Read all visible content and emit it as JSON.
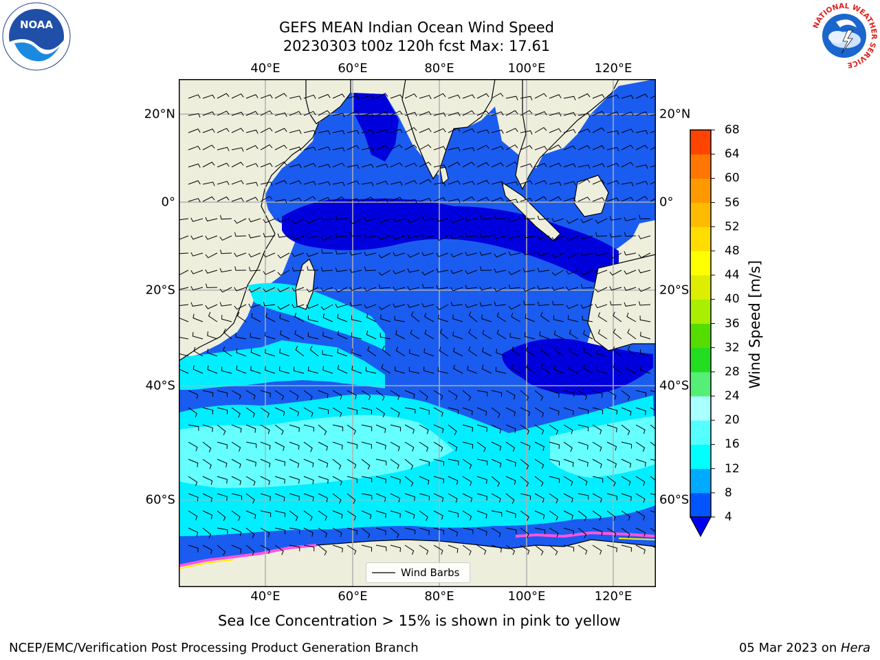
{
  "title": {
    "line1": "GEFS MEAN Indian Ocean Wind Speed",
    "line2": "20230303 t00z 120h fcst   Max: 17.61"
  },
  "axes": {
    "lon_labels": [
      "40°E",
      "60°E",
      "80°E",
      "100°E",
      "120°E"
    ],
    "lat_labels": [
      "20°N",
      "0°",
      "20°S",
      "40°S",
      "60°S"
    ]
  },
  "legend": {
    "wind_barbs_label": "Wind Barbs"
  },
  "colorbar": {
    "label": "Wind Speed [m/s]",
    "ticks": [
      "4",
      "8",
      "12",
      "16",
      "20",
      "24",
      "28",
      "32",
      "36",
      "40",
      "44",
      "48",
      "52",
      "56",
      "60",
      "64",
      "68"
    ],
    "colors": [
      "#0055ff",
      "#00aaff",
      "#00ffff",
      "#55ffff",
      "#aaffff",
      "#55ee77",
      "#22dd22",
      "#55dd00",
      "#aaee00",
      "#ddee00",
      "#ffff00",
      "#ffdd00",
      "#ffbb00",
      "#ff9900",
      "#ff7700",
      "#ff4400",
      "#ff0000"
    ],
    "under_color": "#0000ee"
  },
  "note": "Sea Ice Concentration > 15% is shown in pink to yellow",
  "footer": {
    "left": "NCEP/EMC/Verification Post Processing Product Generation Branch",
    "right_date": "05 Mar 2023 on ",
    "right_machine": "Hera"
  },
  "logos": {
    "noaa_text": "NOAA",
    "nws_ring_text": "NATIONAL WEATHER SERVICE"
  },
  "colors": {
    "land": "#eeeedd",
    "ocean_dark": "#0000dd",
    "ocean_blue": "#1a5cf0",
    "ocean_light": "#00eeff",
    "ocean_pale": "#66ffff"
  }
}
